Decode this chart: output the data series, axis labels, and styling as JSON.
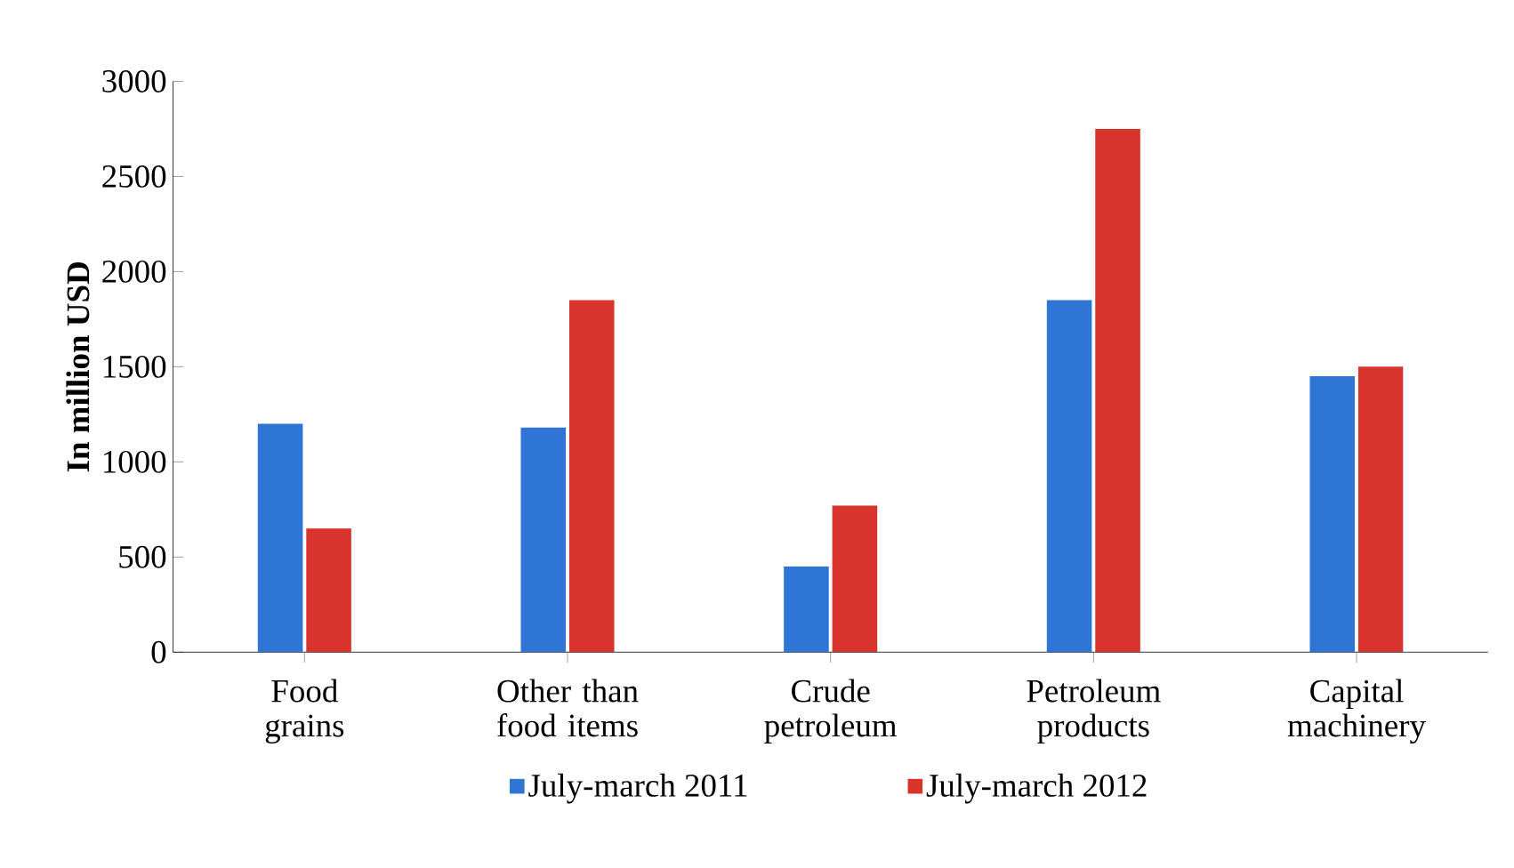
{
  "chart_data": {
    "type": "bar",
    "ylabel": "In million USD",
    "categories": [
      "Food grains",
      "Other than food items",
      "Crude petroleum",
      "Petroleum products",
      "Capital machinery"
    ],
    "series": [
      {
        "name": "July-march 2011",
        "color": "#2e75d6",
        "values": [
          1200,
          1180,
          450,
          1850,
          1450
        ]
      },
      {
        "name": "July-march 2012",
        "color": "#d9342b",
        "values": [
          650,
          1850,
          770,
          2750,
          1500
        ]
      }
    ],
    "ylim": [
      0,
      3000
    ],
    "yticks": [
      0,
      500,
      1000,
      1500,
      2000,
      2500,
      3000
    ],
    "grid": false,
    "legend": "bottom"
  }
}
